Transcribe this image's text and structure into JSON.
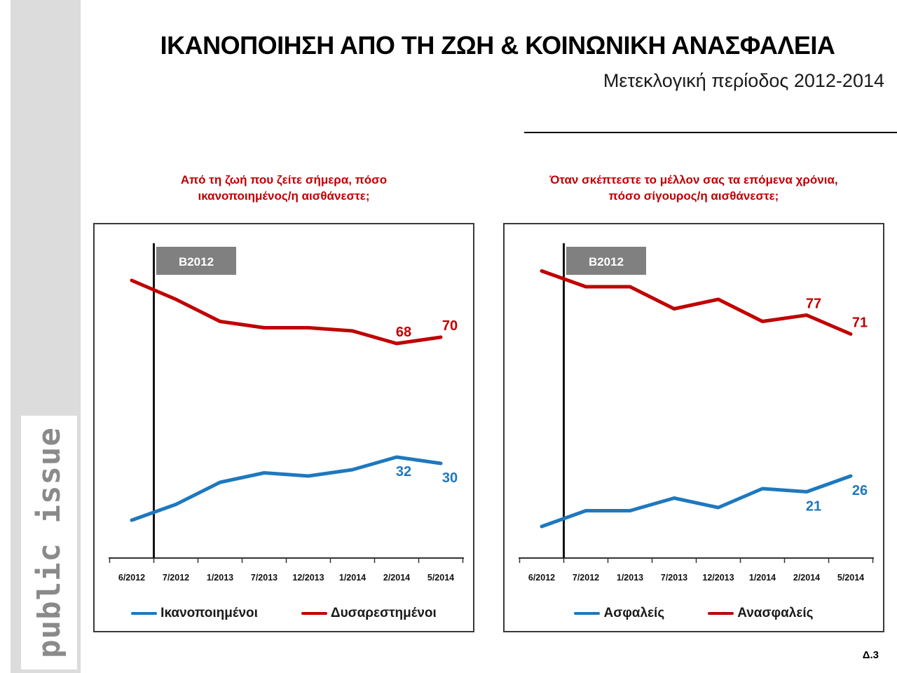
{
  "page": {
    "logo_text": "public issue",
    "title": "ΙΚΑΝΟΠΟΙΗΣΗ ΑΠΟ ΤΗ ΖΩΗ & ΚΟΙΝΩΝΙΚΗ ΑΝΑΣΦΑΛΕΙΑ",
    "subtitle": "Μετεκλογική περίοδος 2012-2014",
    "footer_label": "Δ.3"
  },
  "colors": {
    "blue": "#1e78be",
    "red": "#c00000",
    "sidebar_gray": "#dcdcdc",
    "logo_gray": "#8a8a8a",
    "event_box_gray": "#808080",
    "axis_dark": "#333333",
    "text_dark": "#1a1a1a"
  },
  "chart_data": [
    {
      "type": "line",
      "question_line1": "Από τη ζωή που ζείτε σήμερα, πόσο",
      "question_line2": "ικανοποιημένος/η αισθάνεστε;",
      "categories": [
        "6/2012",
        "7/2012",
        "1/2013",
        "7/2013",
        "12/2013",
        "1/2014",
        "2/2014",
        "5/2014"
      ],
      "event_marker_label": "B2012",
      "ylim": [
        0,
        100
      ],
      "grid": false,
      "legend_position": "bottom",
      "series": [
        {
          "name": "Ικανοποιημένοι",
          "color_key": "blue",
          "values": [
            12,
            17,
            24,
            27,
            26,
            28,
            32,
            30
          ],
          "shown_labels": {
            "6": "32",
            "7": "30"
          },
          "label_side": "below"
        },
        {
          "name": "Δυσαρεστημένοι",
          "color_key": "red",
          "values": [
            88,
            82,
            75,
            73,
            73,
            72,
            68,
            70
          ],
          "shown_labels": {
            "6": "68",
            "7": "70"
          },
          "label_side": "above"
        }
      ]
    },
    {
      "type": "line",
      "question_line1": "Όταν σκέπτεστε το μέλλον σας τα επόμενα χρόνια,",
      "question_line2": "πόσο σίγουρος/η αισθάνεστε;",
      "categories": [
        "6/2012",
        "7/2012",
        "1/2013",
        "7/2013",
        "12/2013",
        "1/2014",
        "2/2014",
        "5/2014"
      ],
      "event_marker_label": "B2012",
      "ylim": [
        0,
        100
      ],
      "grid": false,
      "legend_position": "bottom",
      "series": [
        {
          "name": "Ασφαλείς",
          "color_key": "blue",
          "values": [
            10,
            15,
            15,
            19,
            16,
            22,
            21,
            26
          ],
          "shown_labels": {
            "6": "21",
            "7": "26"
          },
          "label_side": "below"
        },
        {
          "name": "Ανασφαλείς",
          "color_key": "red",
          "values": [
            91,
            86,
            86,
            79,
            82,
            75,
            77,
            71
          ],
          "shown_labels": {
            "6": "77",
            "7": "71"
          },
          "label_side": "above"
        }
      ]
    }
  ]
}
